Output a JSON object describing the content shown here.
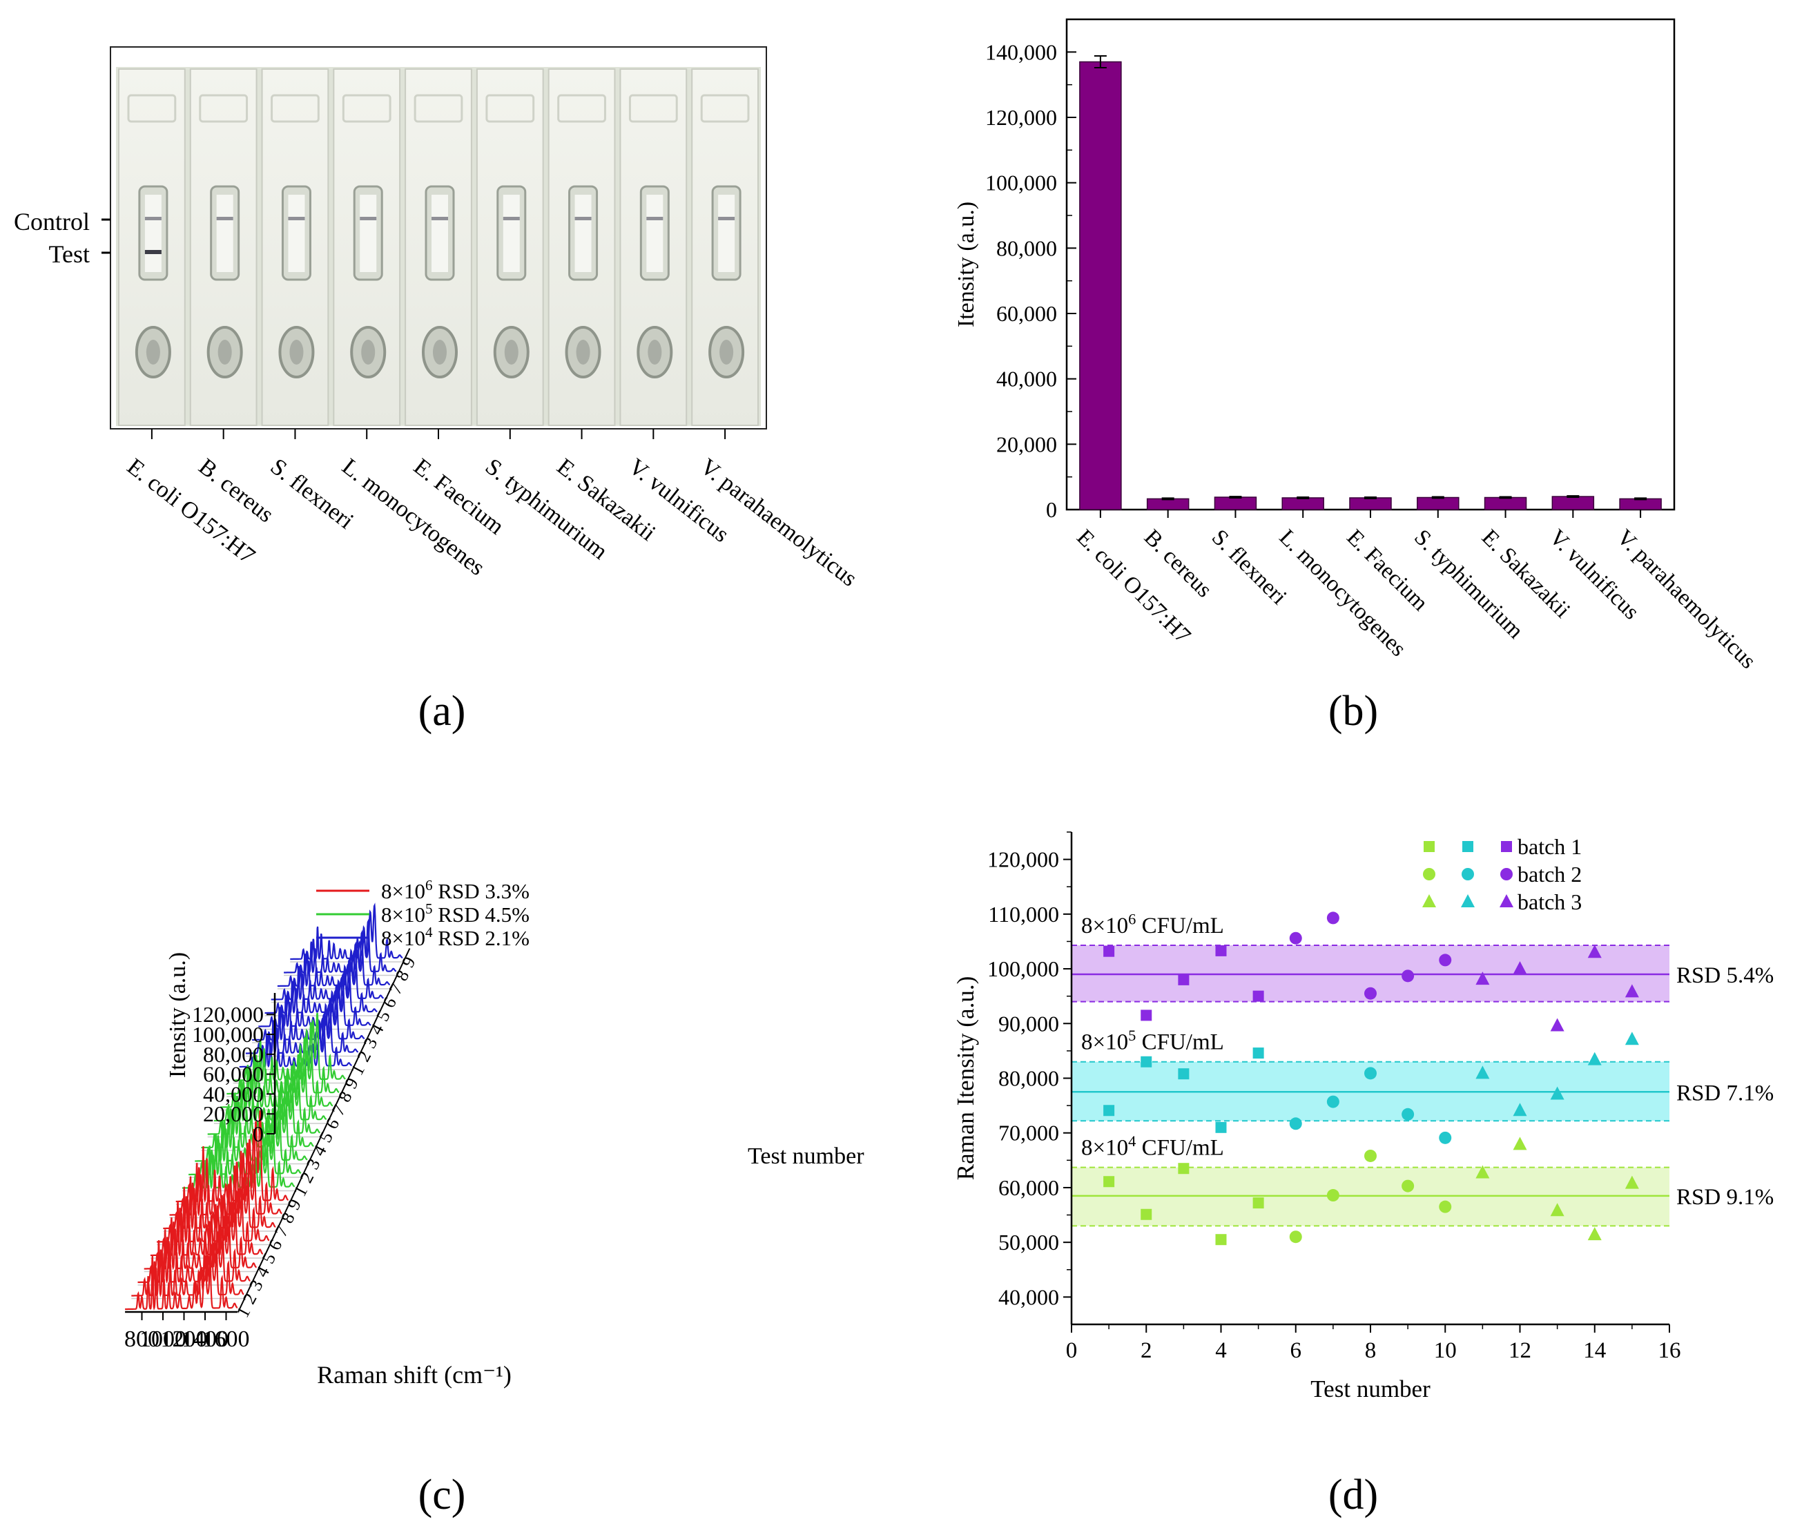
{
  "panels": {
    "a": "(a)",
    "b": "(b)",
    "c": "(c)",
    "d": "(d)"
  },
  "species": [
    "E. coli O157:H7",
    "B. cereus",
    "S. flexneri",
    "L. monocytogenes",
    "E. Faecium",
    "S. typhimurium",
    "E. Sakazakii",
    "V. vulnificus",
    "V. parahaemolyticus"
  ],
  "strip_labels": {
    "control": "Control",
    "test": "Test"
  },
  "colors": {
    "bar": "#800080",
    "red": "#e41a1c",
    "green": "#33cc33",
    "blue": "#1f1fcc",
    "purple": "#8a2be2",
    "cyan": "#22c7cc",
    "lime": "#9ee53a"
  },
  "chart_data": [
    {
      "id": "b",
      "type": "bar",
      "title": "",
      "ylabel": "Itensity (a.u.)",
      "categories": [
        "E. coli O157:H7",
        "B. cereus",
        "S. flexneri",
        "L. monocytogenes",
        "E. Faecium",
        "S. typhimurium",
        "E. Sakazakii",
        "V. vulnificus",
        "V. parahaemolyticus"
      ],
      "values": [
        137000,
        3300,
        3800,
        3600,
        3600,
        3700,
        3700,
        4000,
        3300
      ],
      "errors": [
        1800,
        200,
        200,
        200,
        200,
        200,
        200,
        200,
        200
      ],
      "ylim": [
        0,
        150000
      ],
      "yticks": [
        0,
        20000,
        40000,
        60000,
        80000,
        100000,
        120000,
        140000
      ],
      "ytick_labels": [
        "0",
        "20,000",
        "40,000",
        "60,000",
        "80,000",
        "100,000",
        "120,000",
        "140,000"
      ]
    },
    {
      "id": "c",
      "type": "line",
      "title": "",
      "xlabel": "Raman shift (cm⁻¹)",
      "ylabel": "Itensity (a.u.)",
      "zlabel": "Test number",
      "xticks": [
        800,
        1000,
        1200,
        1400,
        1600
      ],
      "yticks": [
        0,
        20000,
        40000,
        60000,
        80000,
        100000,
        120000
      ],
      "ytick_labels": [
        "0",
        "20,000",
        "40,000",
        "60,000",
        "80,000",
        "100,000",
        "120,000"
      ],
      "ztick_labels": [
        "1",
        "2",
        "3",
        "4",
        "5",
        "6",
        "7",
        "8",
        "9"
      ],
      "series": [
        {
          "name": "8×10⁶ RSD 3.3%",
          "base": "8×10",
          "exp": "6",
          "rsd": "RSD 3.3%",
          "color": "#e41a1c",
          "peak_scale": 1.0
        },
        {
          "name": "8×10⁵ RSD 4.5%",
          "base": "8×10",
          "exp": "5",
          "rsd": "RSD 4.5%",
          "color": "#33cc33",
          "peak_scale": 0.78
        },
        {
          "name": "8×10⁴ RSD 2.1%",
          "base": "8×10",
          "exp": "4",
          "rsd": "RSD 2.1%",
          "color": "#1f1fcc",
          "peak_scale": 0.6
        }
      ]
    },
    {
      "id": "d",
      "type": "scatter",
      "title": "",
      "xlabel": "Test number",
      "ylabel": "Raman Itensity (a.u.)",
      "xlim": [
        0,
        16
      ],
      "ylim": [
        35000,
        125000
      ],
      "xticks": [
        0,
        2,
        4,
        6,
        8,
        10,
        12,
        14,
        16
      ],
      "yticks": [
        40000,
        50000,
        60000,
        70000,
        80000,
        90000,
        100000,
        110000,
        120000
      ],
      "ytick_labels": [
        "40,000",
        "50,000",
        "60,000",
        "70,000",
        "80,000",
        "90,000",
        "100,000",
        "110,000",
        "120,000"
      ],
      "legend": [
        "batch 1",
        "batch 2",
        "batch 3"
      ],
      "groups": [
        {
          "label_base": "8×10",
          "label_exp": "6",
          "label_unit": " CFU/mL",
          "rsd": "RSD 5.4%",
          "color": "#8a2be2",
          "fill": "#d9b3f5",
          "mean": 99000,
          "band": [
            94000,
            104300
          ],
          "points": [
            {
              "x": 1,
              "y": 103200,
              "m": "square"
            },
            {
              "x": 2,
              "y": 91500,
              "m": "square"
            },
            {
              "x": 3,
              "y": 98000,
              "m": "square"
            },
            {
              "x": 4,
              "y": 103300,
              "m": "square"
            },
            {
              "x": 5,
              "y": 95000,
              "m": "square"
            },
            {
              "x": 6,
              "y": 105600,
              "m": "circle"
            },
            {
              "x": 7,
              "y": 109300,
              "m": "circle"
            },
            {
              "x": 8,
              "y": 95500,
              "m": "circle"
            },
            {
              "x": 9,
              "y": 98700,
              "m": "circle"
            },
            {
              "x": 10,
              "y": 101600,
              "m": "circle"
            },
            {
              "x": 11,
              "y": 98100,
              "m": "triangle"
            },
            {
              "x": 12,
              "y": 100000,
              "m": "triangle"
            },
            {
              "x": 13,
              "y": 89600,
              "m": "triangle"
            },
            {
              "x": 14,
              "y": 103000,
              "m": "triangle"
            },
            {
              "x": 15,
              "y": 95800,
              "m": "triangle"
            }
          ]
        },
        {
          "label_base": "8×10",
          "label_exp": "5",
          "label_unit": " CFU/mL",
          "rsd": "RSD 7.1%",
          "color": "#22c7cc",
          "fill": "#9ff2f5",
          "mean": 77500,
          "band": [
            72200,
            83000
          ],
          "points": [
            {
              "x": 1,
              "y": 74100,
              "m": "square"
            },
            {
              "x": 2,
              "y": 83000,
              "m": "square"
            },
            {
              "x": 3,
              "y": 80800,
              "m": "square"
            },
            {
              "x": 4,
              "y": 71000,
              "m": "square"
            },
            {
              "x": 5,
              "y": 84600,
              "m": "square"
            },
            {
              "x": 6,
              "y": 71700,
              "m": "circle"
            },
            {
              "x": 7,
              "y": 75700,
              "m": "circle"
            },
            {
              "x": 8,
              "y": 80900,
              "m": "circle"
            },
            {
              "x": 9,
              "y": 73400,
              "m": "circle"
            },
            {
              "x": 10,
              "y": 69100,
              "m": "circle"
            },
            {
              "x": 11,
              "y": 80900,
              "m": "triangle"
            },
            {
              "x": 12,
              "y": 74100,
              "m": "triangle"
            },
            {
              "x": 13,
              "y": 77100,
              "m": "triangle"
            },
            {
              "x": 14,
              "y": 83400,
              "m": "triangle"
            },
            {
              "x": 15,
              "y": 87100,
              "m": "triangle"
            }
          ]
        },
        {
          "label_base": "8×10",
          "label_exp": "4",
          "label_unit": " CFU/mL",
          "rsd": "RSD 9.1%",
          "color": "#9ee53a",
          "fill": "#e3f7c2",
          "mean": 58500,
          "band": [
            53000,
            63700
          ],
          "points": [
            {
              "x": 1,
              "y": 61100,
              "m": "square"
            },
            {
              "x": 2,
              "y": 55100,
              "m": "square"
            },
            {
              "x": 3,
              "y": 63500,
              "m": "square"
            },
            {
              "x": 4,
              "y": 50500,
              "m": "square"
            },
            {
              "x": 5,
              "y": 57200,
              "m": "square"
            },
            {
              "x": 6,
              "y": 51000,
              "m": "circle"
            },
            {
              "x": 7,
              "y": 58600,
              "m": "circle"
            },
            {
              "x": 8,
              "y": 65800,
              "m": "circle"
            },
            {
              "x": 9,
              "y": 60300,
              "m": "circle"
            },
            {
              "x": 10,
              "y": 56500,
              "m": "circle"
            },
            {
              "x": 11,
              "y": 62700,
              "m": "triangle"
            },
            {
              "x": 12,
              "y": 67900,
              "m": "triangle"
            },
            {
              "x": 13,
              "y": 55800,
              "m": "triangle"
            },
            {
              "x": 14,
              "y": 51400,
              "m": "triangle"
            },
            {
              "x": 15,
              "y": 60800,
              "m": "triangle"
            }
          ]
        }
      ]
    }
  ]
}
